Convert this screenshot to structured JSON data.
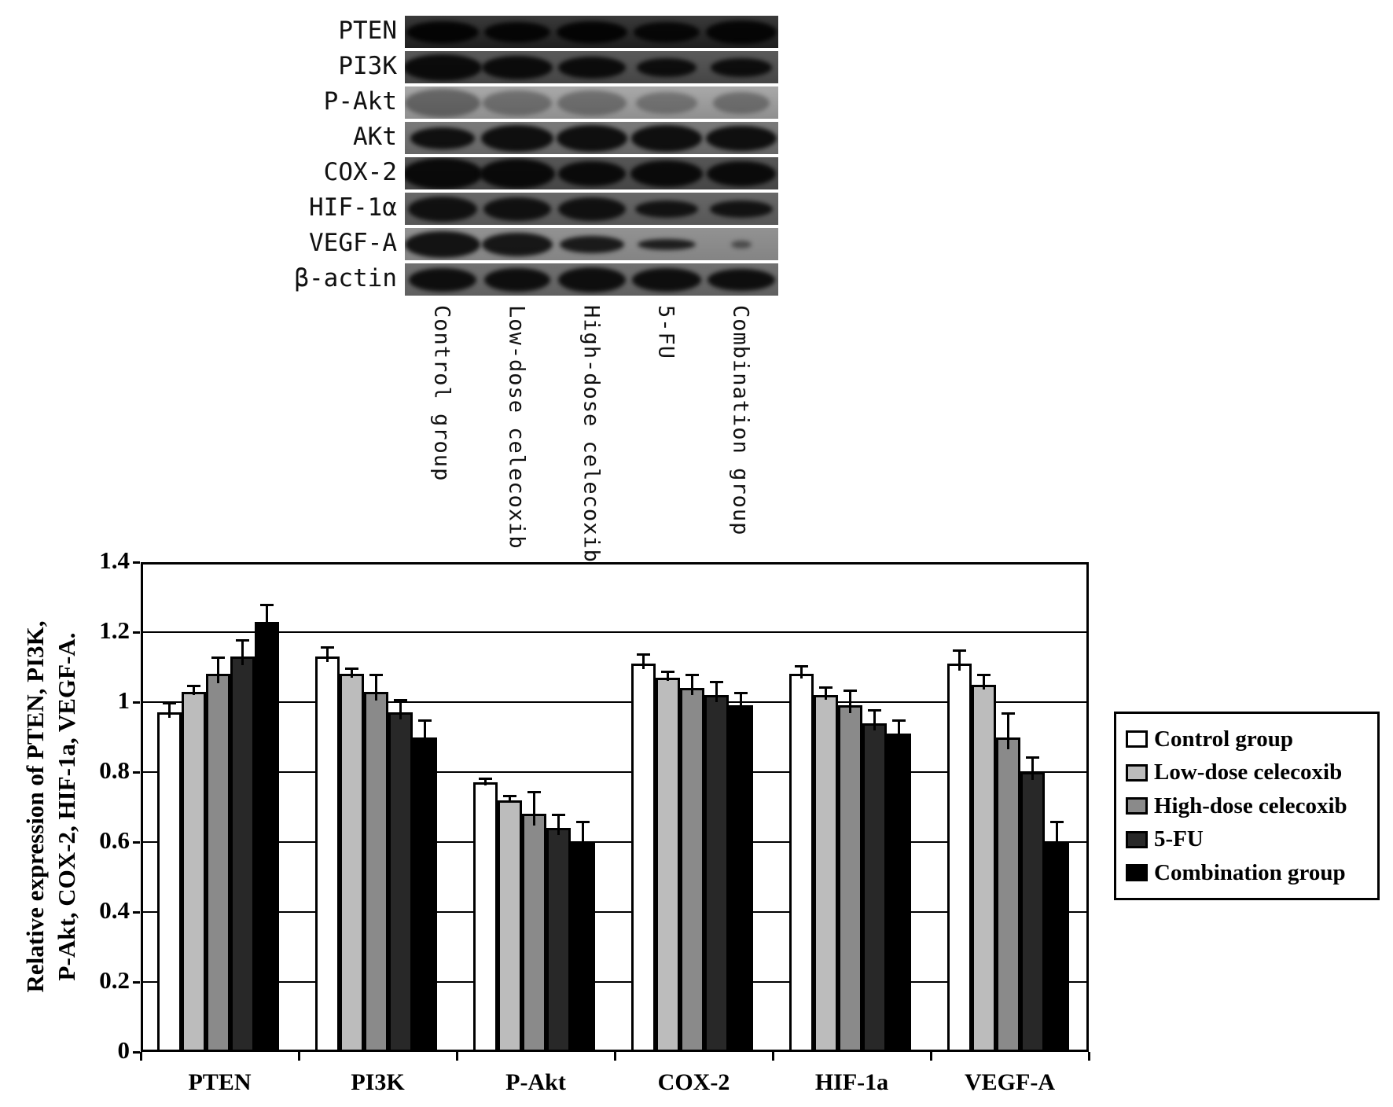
{
  "figure": {
    "background": "#ffffff"
  },
  "blot": {
    "rows": [
      {
        "label": "PTEN",
        "bg_top": "#3a3a3a",
        "bg_bottom": "#1f1f1f",
        "band_rgb": "0,0,0",
        "lanes": [
          [
            92,
            28,
            0.9
          ],
          [
            84,
            26,
            0.88
          ],
          [
            90,
            28,
            0.9
          ],
          [
            84,
            26,
            0.85
          ],
          [
            90,
            30,
            0.88
          ]
        ]
      },
      {
        "label": "PI3K",
        "bg_top": "#5a5a5a",
        "bg_bottom": "#454545",
        "band_rgb": "5,5,5",
        "lanes": [
          [
            100,
            34,
            0.93
          ],
          [
            90,
            30,
            0.92
          ],
          [
            86,
            28,
            0.92
          ],
          [
            76,
            24,
            0.9
          ],
          [
            78,
            24,
            0.9
          ]
        ]
      },
      {
        "label": "P-Akt",
        "bg_top": "#a9a9a9",
        "bg_bottom": "#8f8f8f",
        "band_rgb": "40,40,40",
        "lanes": [
          [
            96,
            36,
            0.5
          ],
          [
            88,
            32,
            0.42
          ],
          [
            88,
            32,
            0.42
          ],
          [
            78,
            28,
            0.38
          ],
          [
            72,
            28,
            0.42
          ]
        ]
      },
      {
        "label": "AKt",
        "bg_top": "#7a7a7a",
        "bg_bottom": "#666666",
        "band_rgb": "8,8,8",
        "lanes": [
          [
            82,
            28,
            0.92
          ],
          [
            92,
            34,
            0.93
          ],
          [
            90,
            34,
            0.93
          ],
          [
            90,
            34,
            0.93
          ],
          [
            90,
            32,
            0.93
          ]
        ]
      },
      {
        "label": "COX-2",
        "bg_top": "#565656",
        "bg_bottom": "#464646",
        "band_rgb": "5,5,5",
        "lanes": [
          [
            102,
            40,
            0.94
          ],
          [
            96,
            38,
            0.94
          ],
          [
            86,
            32,
            0.93
          ],
          [
            92,
            34,
            0.93
          ],
          [
            88,
            32,
            0.93
          ]
        ]
      },
      {
        "label": "HIF-1α",
        "bg_top": "#686868",
        "bg_bottom": "#575757",
        "band_rgb": "10,10,10",
        "lanes": [
          [
            88,
            32,
            0.92
          ],
          [
            86,
            30,
            0.92
          ],
          [
            86,
            30,
            0.92
          ],
          [
            80,
            22,
            0.9
          ],
          [
            80,
            22,
            0.9
          ]
        ]
      },
      {
        "label": "VEGF-A",
        "bg_top": "#929292",
        "bg_bottom": "#848484",
        "band_rgb": "10,10,10",
        "lanes": [
          [
            96,
            34,
            0.93
          ],
          [
            90,
            30,
            0.9
          ],
          [
            82,
            22,
            0.88
          ],
          [
            74,
            14,
            0.85
          ],
          [
            26,
            10,
            0.5
          ]
        ]
      },
      {
        "label": "β-actin",
        "bg_top": "#717171",
        "bg_bottom": "#606060",
        "band_rgb": "8,8,8",
        "lanes": [
          [
            86,
            30,
            0.93
          ],
          [
            84,
            30,
            0.93
          ],
          [
            86,
            32,
            0.93
          ],
          [
            88,
            30,
            0.93
          ],
          [
            86,
            28,
            0.93
          ]
        ]
      }
    ],
    "lane_labels": [
      "Control group",
      "Low-dose celecoxib",
      "High-dose celecoxib",
      "5-FU",
      "Combination group"
    ]
  },
  "chart_data": {
    "type": "bar",
    "title": "",
    "categories": [
      "PTEN",
      "PI3K",
      "P-Akt",
      "COX-2",
      "HIF-1a",
      "VEGF-A"
    ],
    "series": [
      {
        "name": "Control group",
        "color": "#ffffff",
        "values": [
          0.97,
          1.13,
          0.77,
          1.11,
          1.08,
          1.11
        ],
        "errors": [
          0.03,
          0.03,
          0.015,
          0.03,
          0.025,
          0.04
        ]
      },
      {
        "name": "Low-dose celecoxib",
        "color": "#bcbcbc",
        "values": [
          1.03,
          1.08,
          0.72,
          1.07,
          1.02,
          1.05
        ],
        "errors": [
          0.02,
          0.02,
          0.015,
          0.02,
          0.025,
          0.03
        ]
      },
      {
        "name": "High-dose celecoxib",
        "color": "#8a8a8a",
        "values": [
          1.08,
          1.03,
          0.68,
          1.04,
          0.99,
          0.9
        ],
        "errors": [
          0.05,
          0.05,
          0.065,
          0.04,
          0.045,
          0.07
        ]
      },
      {
        "name": "5-FU",
        "color": "#282828",
        "values": [
          1.13,
          0.97,
          0.64,
          1.02,
          0.94,
          0.8
        ],
        "errors": [
          0.05,
          0.04,
          0.04,
          0.04,
          0.04,
          0.045
        ]
      },
      {
        "name": "Combination group",
        "color": "#000000",
        "values": [
          1.23,
          0.9,
          0.6,
          0.99,
          0.91,
          0.6
        ],
        "errors": [
          0.05,
          0.05,
          0.06,
          0.04,
          0.04,
          0.06
        ]
      }
    ],
    "ylabel_line1": "Relative expression of PTEN, PI3K,",
    "ylabel_line2": "P-Akt, COX-2, HIF-1a, VEGF-A.",
    "ylim": [
      0,
      1.4
    ],
    "ytick_step": 0.2,
    "yticks": [
      "0",
      "0.2",
      "0.4",
      "0.6",
      "0.8",
      "1",
      "1.2",
      "1.4"
    ],
    "grid": true,
    "legend_position": "right"
  }
}
